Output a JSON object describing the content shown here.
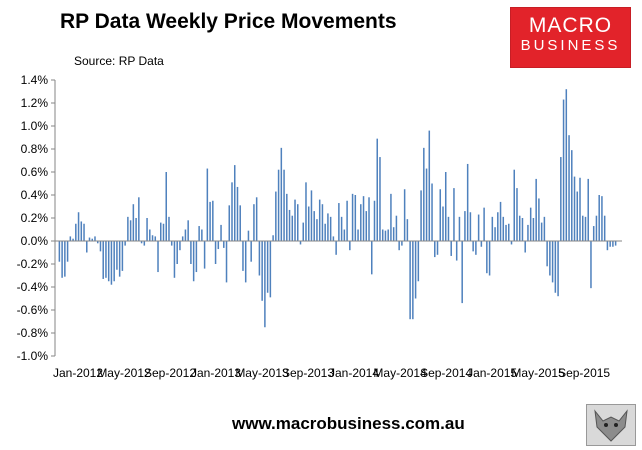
{
  "header": {
    "title": "RP Data Weekly Price Movements",
    "source": "Source: RP Data"
  },
  "logo": {
    "line1": "MACRO",
    "line2": "BUSINESS",
    "background": "#e2232a"
  },
  "footer": {
    "url": "www.macrobusiness.com.au",
    "mascot_icon": "fox-mascot-icon"
  },
  "chart_data": {
    "type": "bar",
    "title": "RP Data Weekly Price Movements",
    "xlabel": "",
    "ylabel": "",
    "ylim": [
      -1.0,
      1.4
    ],
    "yticks": [
      "-1.0%",
      "-0.8%",
      "-0.6%",
      "-0.4%",
      "-0.2%",
      "0.0%",
      "0.2%",
      "0.4%",
      "0.6%",
      "0.8%",
      "1.0%",
      "1.2%",
      "1.4%"
    ],
    "xticks": [
      "Jan-2012",
      "May-2012",
      "Sep-2012",
      "Jan-2013",
      "May-2013",
      "Sep-2013",
      "Jan-2014",
      "May-2014",
      "Sep-2014",
      "Jan-2015",
      "May-2015",
      "Sep-2015"
    ],
    "grid": false,
    "legend": "none",
    "series": [
      {
        "color": "#4f81bd",
        "values": [
          -0.18,
          -0.32,
          -0.31,
          -0.18,
          0.04,
          0.02,
          0.15,
          0.25,
          0.17,
          0.15,
          -0.1,
          0.03,
          0.02,
          0.04,
          -0.02,
          -0.09,
          -0.33,
          -0.32,
          -0.35,
          -0.38,
          -0.35,
          -0.25,
          -0.31,
          -0.26,
          -0.04,
          0.21,
          0.18,
          0.32,
          0.2,
          0.38,
          -0.02,
          -0.04,
          0.2,
          0.1,
          0.05,
          0.04,
          -0.27,
          0.16,
          0.15,
          0.6,
          0.21,
          -0.04,
          -0.32,
          -0.2,
          -0.08,
          0.04,
          0.1,
          0.18,
          -0.2,
          -0.35,
          -0.27,
          0.13,
          0.1,
          -0.24,
          0.63,
          0.34,
          0.35,
          -0.2,
          -0.07,
          0.14,
          -0.06,
          -0.36,
          0.31,
          0.51,
          0.66,
          0.47,
          0.31,
          -0.26,
          -0.36,
          0.09,
          -0.18,
          0.32,
          0.38,
          -0.3,
          -0.52,
          -0.75,
          -0.45,
          -0.49,
          0.05,
          0.43,
          0.62,
          0.81,
          0.62,
          0.41,
          0.27,
          0.22,
          0.36,
          0.32,
          -0.03,
          0.16,
          0.51,
          0.3,
          0.44,
          0.26,
          0.19,
          0.36,
          0.32,
          0.15,
          0.24,
          0.21,
          0.04,
          -0.12,
          0.33,
          0.21,
          0.1,
          0.35,
          -0.08,
          0.41,
          0.4,
          0.1,
          0.32,
          0.39,
          0.26,
          0.38,
          -0.29,
          0.35,
          0.89,
          0.73,
          0.1,
          0.09,
          0.1,
          0.41,
          0.12,
          0.22,
          -0.08,
          -0.04,
          0.45,
          0.19,
          -0.68,
          -0.68,
          -0.5,
          -0.35,
          0.44,
          0.81,
          0.63,
          0.96,
          0.5,
          -0.14,
          -0.12,
          0.45,
          0.3,
          0.6,
          0.21,
          -0.13,
          0.46,
          -0.17,
          0.21,
          -0.54,
          0.26,
          0.67,
          0.25,
          -0.09,
          -0.12,
          0.23,
          -0.05,
          0.29,
          -0.28,
          -0.3,
          0.21,
          0.12,
          0.25,
          0.34,
          0.21,
          0.14,
          0.15,
          -0.03,
          0.62,
          0.46,
          0.22,
          0.2,
          -0.1,
          0.14,
          0.29,
          0.2,
          0.54,
          0.37,
          0.16,
          0.21,
          -0.22,
          -0.3,
          -0.36,
          -0.45,
          -0.48,
          0.73,
          1.23,
          1.32,
          0.92,
          0.79,
          0.56,
          0.43,
          0.55,
          0.22,
          0.21,
          0.54,
          -0.41,
          0.13,
          0.22,
          0.4,
          0.39,
          0.22,
          -0.08,
          -0.05,
          -0.05,
          -0.04
        ]
      }
    ]
  }
}
